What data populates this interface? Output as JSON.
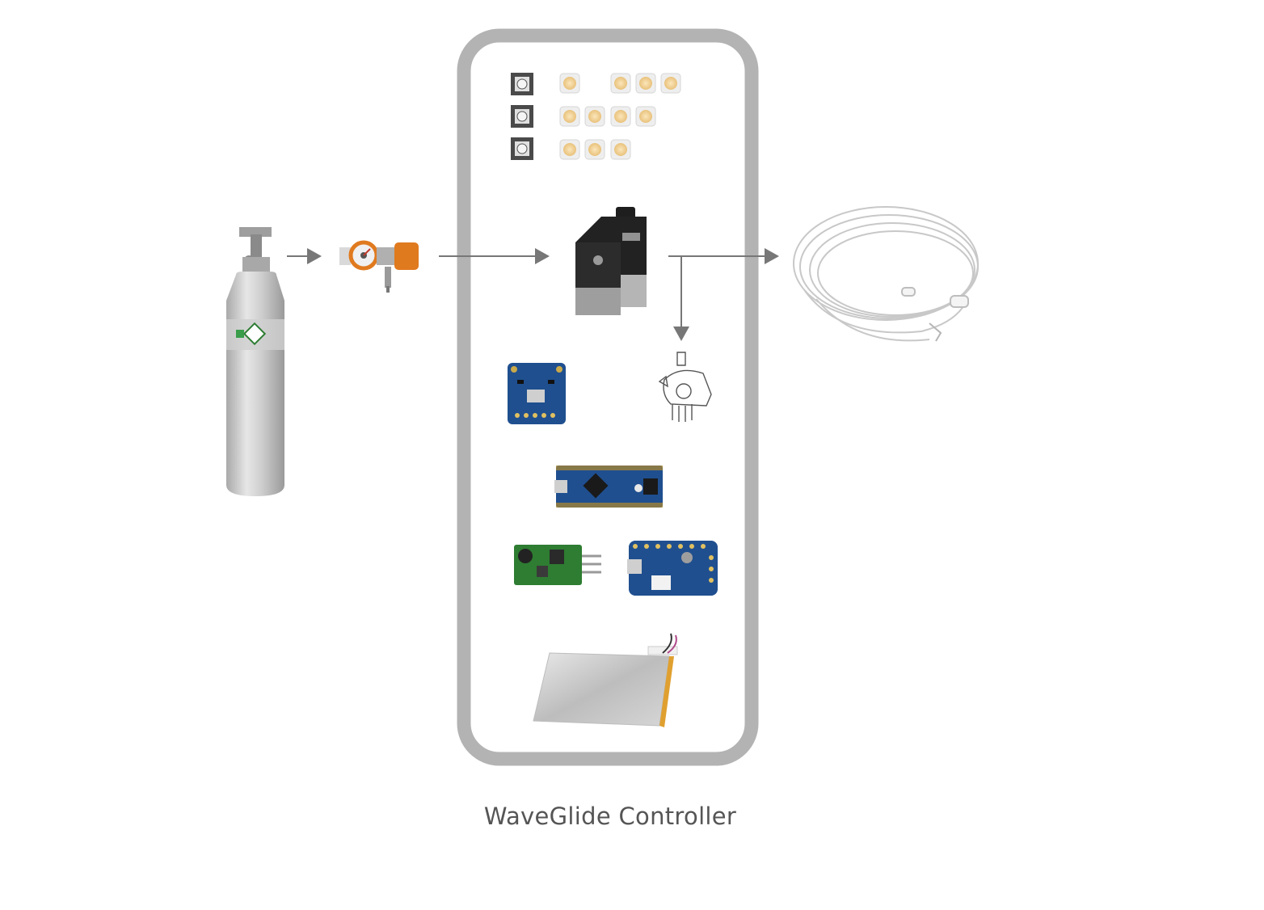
{
  "diagram": {
    "caption": "WaveGlide Controller",
    "colors": {
      "enclosure_border": "#b3b3b3",
      "arrow": "#777777",
      "caption_text": "#555555",
      "led_fill": "#f5d9a6",
      "pcb_blue": "#1f4f8f",
      "pcb_green": "#2e7d32",
      "cylinder_silver": "#c9c9c9",
      "regulator_orange": "#e07a1f"
    },
    "components": [
      {
        "name": "oxygen-cylinder",
        "icon": "gas-cylinder-icon"
      },
      {
        "name": "pressure-regulator",
        "icon": "regulator-icon"
      },
      {
        "name": "push-buttons",
        "icon": "push-button-icon",
        "count": 3
      },
      {
        "name": "led-array",
        "icon": "led-icon",
        "row_counts": [
          4,
          4,
          3
        ]
      },
      {
        "name": "solenoid-valve",
        "icon": "solenoid-valve-icon"
      },
      {
        "name": "bmp180-pressure-sensor",
        "icon": "pcb-sensor-icon"
      },
      {
        "name": "differential-pressure-sensor",
        "icon": "pressure-sensor-icon"
      },
      {
        "name": "arduino-nano",
        "icon": "microcontroller-board-icon"
      },
      {
        "name": "dc-dc-converter",
        "icon": "power-module-icon"
      },
      {
        "name": "lipo-charger",
        "icon": "charger-board-icon"
      },
      {
        "name": "lipo-battery",
        "icon": "battery-icon"
      },
      {
        "name": "nasal-cannula",
        "icon": "nasal-cannula-icon"
      }
    ],
    "connections": [
      {
        "from": "oxygen-cylinder",
        "to": "pressure-regulator"
      },
      {
        "from": "pressure-regulator",
        "to": "solenoid-valve"
      },
      {
        "from": "solenoid-valve",
        "to": "nasal-cannula"
      },
      {
        "from": "solenoid-valve",
        "to": "differential-pressure-sensor"
      }
    ]
  }
}
